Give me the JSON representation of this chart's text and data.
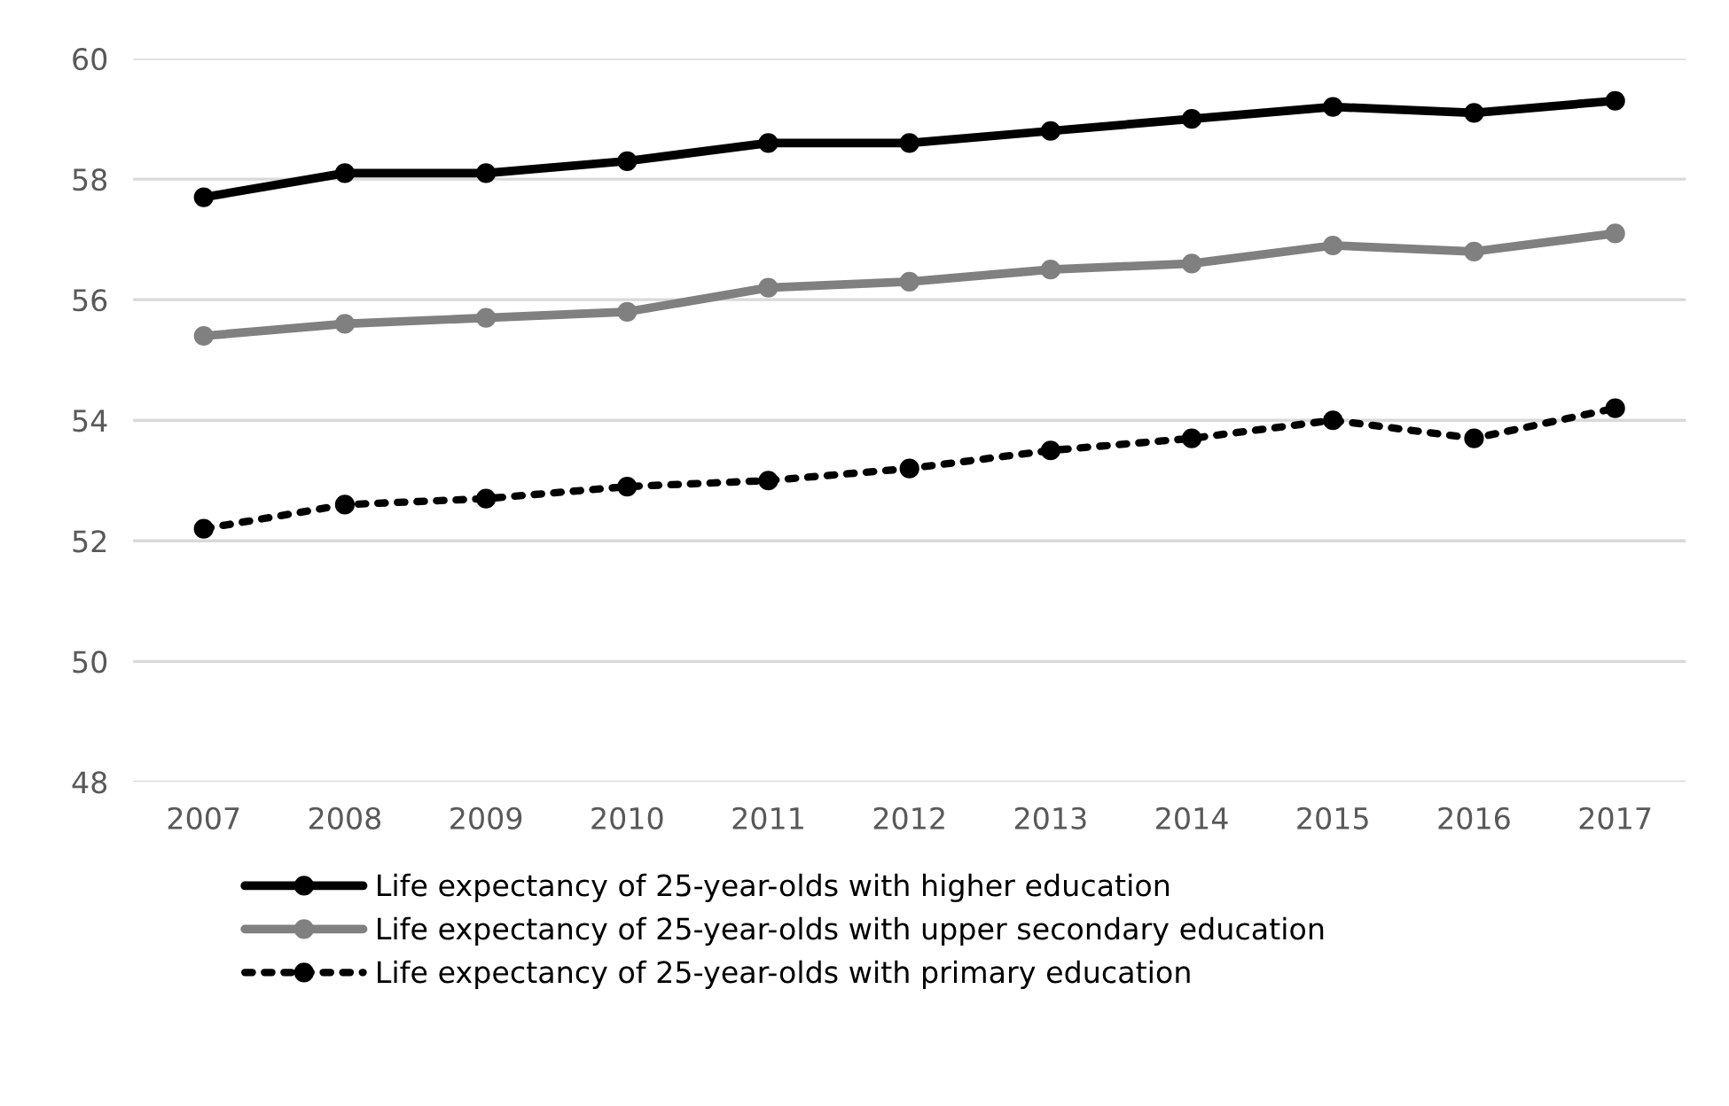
{
  "chart_data": {
    "type": "line",
    "categories": [
      "2007",
      "2008",
      "2009",
      "2010",
      "2011",
      "2012",
      "2013",
      "2014",
      "2015",
      "2016",
      "2017"
    ],
    "series": [
      {
        "name": "Life expectancy of 25-year-olds with higher education",
        "color": "#000000",
        "line_style": "solid",
        "values": [
          57.7,
          58.1,
          58.1,
          58.3,
          58.6,
          58.6,
          58.8,
          59.0,
          59.2,
          59.1,
          59.3
        ]
      },
      {
        "name": "Life expectancy of 25-year-olds with upper secondary education",
        "color": "#808080",
        "line_style": "solid",
        "values": [
          55.4,
          55.6,
          55.7,
          55.8,
          56.2,
          56.3,
          56.5,
          56.6,
          56.9,
          56.8,
          57.1
        ]
      },
      {
        "name": "Life expectancy of 25-year-olds with primary education",
        "color": "#000000",
        "line_style": "dotted",
        "values": [
          52.2,
          52.6,
          52.7,
          52.9,
          53.0,
          53.2,
          53.5,
          53.7,
          54.0,
          53.7,
          54.2
        ]
      }
    ],
    "ylim": [
      48,
      60
    ],
    "yticks": [
      48,
      50,
      52,
      54,
      56,
      58,
      60
    ],
    "grid": "y",
    "legend": "bottom",
    "marker": "circle"
  }
}
